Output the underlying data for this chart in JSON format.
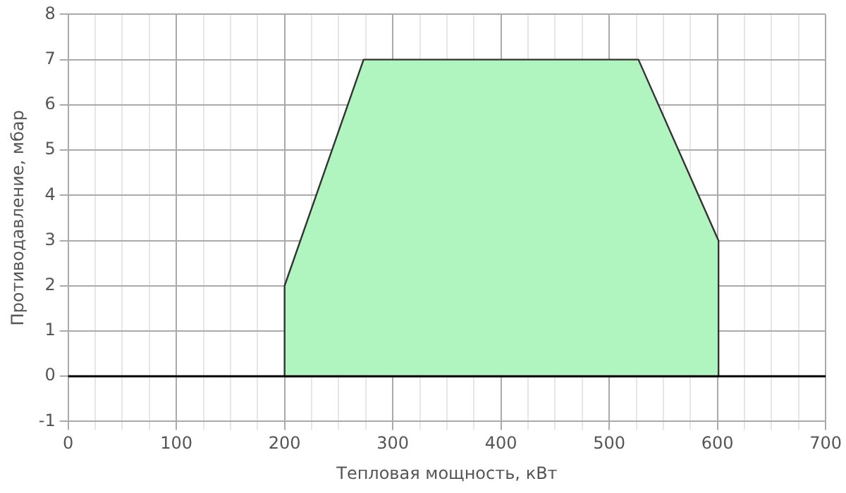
{
  "chart_data": {
    "type": "area",
    "xlabel": "Тепловая мощность, кВт",
    "ylabel": "Противодавление, мбар",
    "x": [
      200,
      200,
      273,
      527,
      601,
      601,
      200
    ],
    "values": [
      0,
      2,
      7,
      7,
      3,
      0,
      0
    ],
    "color": "#b0f5c0",
    "xlim": [
      0,
      700
    ],
    "xticks": [
      0,
      {
        "value": 25,
        "label": null
      },
      {
        "value": 50,
        "label": null
      },
      {
        "value": 75,
        "label": null
      },
      100,
      {
        "value": 125,
        "label": null
      },
      {
        "value": 150,
        "label": null
      },
      {
        "value": 175,
        "label": null
      },
      200,
      {
        "value": 225,
        "label": null
      },
      {
        "value": 250,
        "label": null
      },
      {
        "value": 275,
        "label": null
      },
      300,
      {
        "value": 325,
        "label": null
      },
      {
        "value": 350,
        "label": null
      },
      {
        "value": 375,
        "label": null
      },
      400,
      {
        "value": 425,
        "label": null
      },
      {
        "value": 450,
        "label": null
      },
      {
        "value": 475,
        "label": null
      },
      500,
      {
        "value": 525,
        "label": null
      },
      {
        "value": 550,
        "label": null
      },
      {
        "value": 575,
        "label": null
      },
      600,
      {
        "value": 625,
        "label": null
      },
      {
        "value": 650,
        "label": null
      },
      {
        "value": 675,
        "label": null
      },
      700
    ],
    "ylim": [
      -1,
      8
    ],
    "yticks": [
      -1,
      0,
      1,
      2,
      3,
      4,
      5,
      6,
      7,
      8
    ],
    "ref_lines": [
      {
        "axis": "y",
        "value": 0,
        "color": "#000000"
      }
    ],
    "grid": true,
    "legend": false
  }
}
